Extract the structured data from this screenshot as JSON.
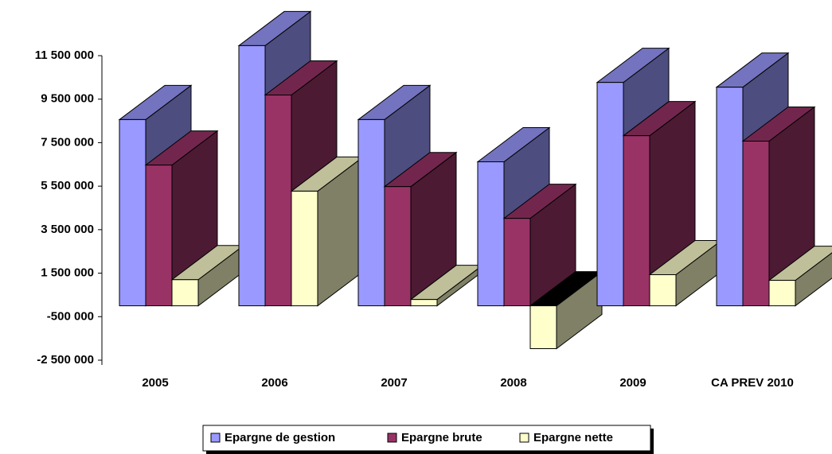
{
  "chart_data": {
    "type": "bar3d",
    "categories": [
      "2005",
      "2006",
      "2007",
      "2008",
      "2009",
      "CA PREV 2010"
    ],
    "series": [
      {
        "name": "Epargne de gestion",
        "color": "#9999ff",
        "values": [
          8560000,
          11960000,
          8560000,
          6620000,
          10270000,
          10050000
        ]
      },
      {
        "name": "Epargne brute",
        "color": "#993366",
        "values": [
          6470000,
          9690000,
          5480000,
          4020000,
          7820000,
          7570000
        ]
      },
      {
        "name": "Epargne nette",
        "color": "#ffffcc",
        "values": [
          1200000,
          5270000,
          290000,
          -1970000,
          1430000,
          1170000
        ]
      }
    ],
    "ylim": [
      -2500000,
      11500000
    ],
    "yticks": [
      {
        "value": -2500000,
        "label": "-2 500 000"
      },
      {
        "value": -500000,
        "label": "-500 000"
      },
      {
        "value": 1500000,
        "label": "1 500 000"
      },
      {
        "value": 3500000,
        "label": "3 500 000"
      },
      {
        "value": 5500000,
        "label": "5 500 000"
      },
      {
        "value": 7500000,
        "label": "7 500 000"
      },
      {
        "value": 9500000,
        "label": "9 500 000"
      },
      {
        "value": 11500000,
        "label": "11 500 000"
      }
    ],
    "legend": "bottom"
  }
}
